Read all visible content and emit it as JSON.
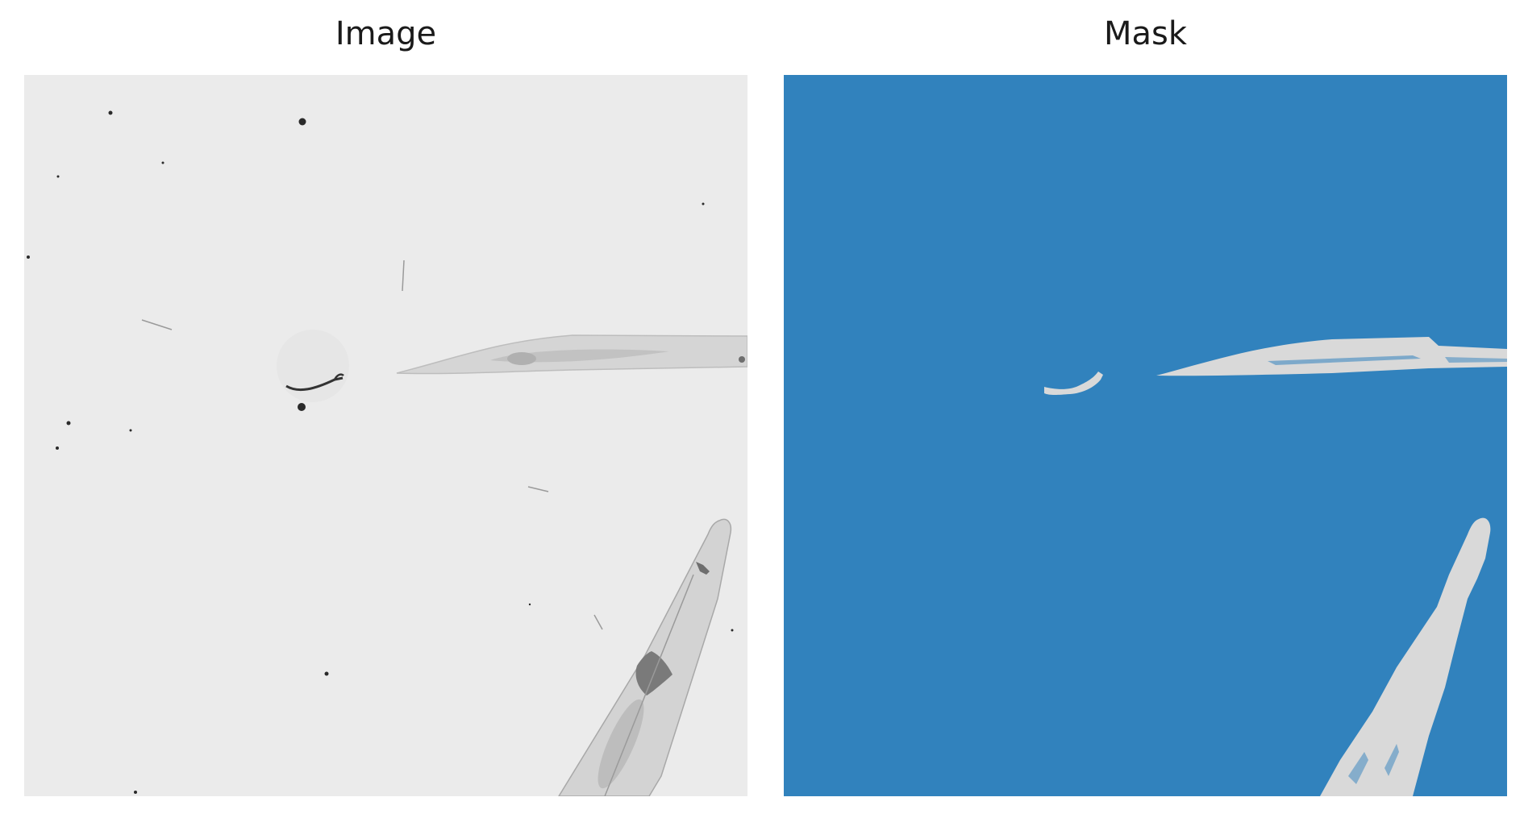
{
  "panels": {
    "image": {
      "title": "Image"
    },
    "mask": {
      "title": "Mask"
    }
  },
  "colors": {
    "image_background": "#ebebeb",
    "mask_background": "#3182bd",
    "mask_foreground": "#d9d9d9",
    "worm_body": "#cfcfcf",
    "worm_dark": "#6e6e6e",
    "debris": "#2a2a2a"
  }
}
